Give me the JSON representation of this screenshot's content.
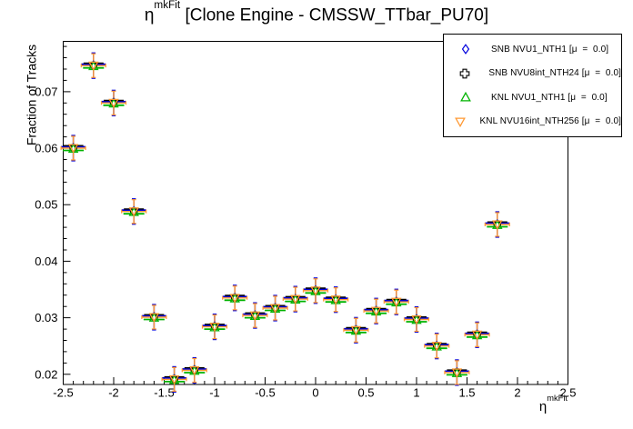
{
  "title": {
    "prefix": "η",
    "superscript": "mkFit",
    "rest": " [Clone Engine - CMSSW_TTbar_PU70]"
  },
  "axes": {
    "y_label": "Fraction of Tracks",
    "x_label_prefix": "η",
    "x_label_superscript": "mkFit"
  },
  "legend": {
    "entries": [
      {
        "label": "SNB NVU1_NTH1 [μ  =  0.0]",
        "marker": "open-diamond",
        "color": "#0000dd"
      },
      {
        "label": "SNB NVU8int_NTH24 [μ  =  0.0]",
        "marker": "open-cross",
        "color": "#000000"
      },
      {
        "label": "KNL NVU1_NTH1 [μ  =  0.0]",
        "marker": "open-triangle-up",
        "color": "#00b300"
      },
      {
        "label": "KNL NVU16int_NTH256 [μ  =  0.0]",
        "marker": "open-triangle-down",
        "color": "#ff9933"
      }
    ]
  },
  "chart_data": {
    "type": "scatter",
    "title": "η^mkFit [Clone Engine - CMSSW_TTbar_PU70]",
    "xlabel": "η^mkFit",
    "ylabel": "Fraction of Tracks",
    "xlim": [
      -2.5,
      2.5
    ],
    "ylim": [
      0.0182,
      0.0789
    ],
    "grid": false,
    "legend_position": "top-right",
    "x_major_ticks": [
      -2.5,
      -2,
      -1.5,
      -1,
      -0.5,
      0,
      0.5,
      1,
      1.5,
      2,
      2.5
    ],
    "x_tick_labels": [
      "-2.5",
      "-2",
      "-1.5",
      "-1",
      "-0.5",
      "0",
      "0.5",
      "1",
      "1.5",
      "2",
      "2.5"
    ],
    "x_minor_step": 0.1,
    "y_major_ticks": [
      0.02,
      0.03,
      0.04,
      0.05,
      0.06,
      0.07
    ],
    "y_tick_labels": [
      "0.02",
      "0.03",
      "0.04",
      "0.05",
      "0.06",
      "0.07"
    ],
    "y_minor_step": 0.002,
    "x": [
      -2.4,
      -2.2,
      -2.0,
      -1.8,
      -1.6,
      -1.4,
      -1.2,
      -1.0,
      -0.8,
      -0.6,
      -0.4,
      -0.2,
      0.0,
      0.2,
      0.4,
      0.6,
      0.8,
      1.0,
      1.2,
      1.4,
      1.6,
      1.8
    ],
    "xerr": 0.1,
    "series": [
      {
        "name": "SNB NVU1_NTH1 [μ = 0.0]",
        "marker": "open-diamond",
        "color": "#0000dd",
        "yerr": 0.0023,
        "values": [
          0.06,
          0.0746,
          0.068,
          0.0488,
          0.0301,
          0.0191,
          0.0207,
          0.0284,
          0.0335,
          0.0304,
          0.0317,
          0.0333,
          0.0348,
          0.0332,
          0.0278,
          0.0312,
          0.0328,
          0.0297,
          0.025,
          0.0203,
          0.027,
          0.0465
        ]
      },
      {
        "name": "SNB NVU8int_NTH24 [μ = 0.0]",
        "marker": "open-cross",
        "color": "#000000",
        "yerr": 0.0018,
        "values": [
          0.06,
          0.0746,
          0.068,
          0.0488,
          0.0301,
          0.0191,
          0.0207,
          0.0284,
          0.0335,
          0.0304,
          0.0317,
          0.0333,
          0.0348,
          0.0332,
          0.0278,
          0.0312,
          0.0328,
          0.0297,
          0.025,
          0.0203,
          0.027,
          0.0465
        ]
      },
      {
        "name": "KNL NVU1_NTH1 [μ = 0.0]",
        "marker": "open-triangle-up",
        "color": "#00b300",
        "yerr": 0.0008,
        "values": [
          0.06,
          0.0746,
          0.068,
          0.0488,
          0.0301,
          0.0191,
          0.0207,
          0.0284,
          0.0335,
          0.0304,
          0.0317,
          0.0333,
          0.0348,
          0.0332,
          0.0278,
          0.0312,
          0.0328,
          0.0297,
          0.025,
          0.0203,
          0.027,
          0.0465
        ]
      },
      {
        "name": "KNL NVU16int_NTH256 [μ = 0.0]",
        "marker": "open-triangle-down",
        "color": "#ff9933",
        "yerr": 0.0021,
        "values": [
          0.06,
          0.0746,
          0.068,
          0.0488,
          0.0301,
          0.0191,
          0.0207,
          0.0284,
          0.0335,
          0.0304,
          0.0317,
          0.0333,
          0.0348,
          0.0332,
          0.0278,
          0.0312,
          0.0328,
          0.0297,
          0.025,
          0.0203,
          0.027,
          0.0465
        ]
      }
    ]
  }
}
